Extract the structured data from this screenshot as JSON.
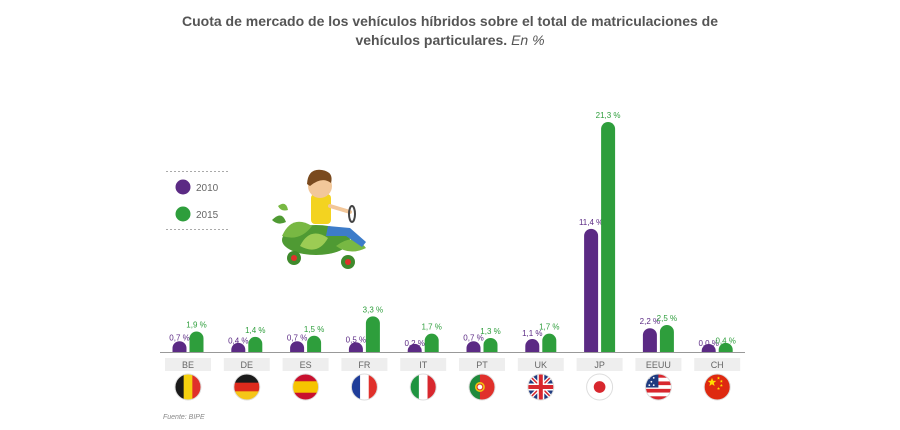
{
  "title": {
    "line1": "Cuota de mercado de los vehículos híbridos sobre el total de matriculaciones de",
    "line2": "vehículos particulares.",
    "unit": "En %"
  },
  "source": "Fuente: BIPE",
  "colors": {
    "s2010": "#5b2a84",
    "s2015": "#2e9e3c",
    "axis": "#999999"
  },
  "chart_data": {
    "type": "bar",
    "categories": [
      "BE",
      "DE",
      "ES",
      "FR",
      "IT",
      "PT",
      "UK",
      "JP",
      "EEUU",
      "CH"
    ],
    "series": [
      {
        "name": "2010",
        "values": [
          0.7,
          0.4,
          0.7,
          0.5,
          0.2,
          0.7,
          1.1,
          11.4,
          2.2,
          0.0
        ]
      },
      {
        "name": "2015",
        "values": [
          1.9,
          1.4,
          1.5,
          3.3,
          1.7,
          1.3,
          1.7,
          21.3,
          2.5,
          0.4
        ]
      }
    ],
    "data_labels": [
      [
        "0,7 %",
        "0,4 %",
        "0,7 %",
        "0,5 %",
        "0,2 %",
        "0,7 %",
        "1,1 %",
        "11,4 %",
        "2,2 %",
        "0,0 %"
      ],
      [
        "1,9 %",
        "1,4 %",
        "1,5 %",
        "3,3 %",
        "1,7 %",
        "1,3 %",
        "1,7 %",
        "21,3 %",
        "2,5 %",
        "0,4 %"
      ]
    ],
    "legend_position": "top-left",
    "flags": [
      "flag-be-icon",
      "flag-de-icon",
      "flag-es-icon",
      "flag-fr-icon",
      "flag-it-icon",
      "flag-pt-icon",
      "flag-uk-icon",
      "flag-jp-icon",
      "flag-us-icon",
      "flag-cn-icon"
    ]
  },
  "illustration": "child-driving-plant-car-icon"
}
